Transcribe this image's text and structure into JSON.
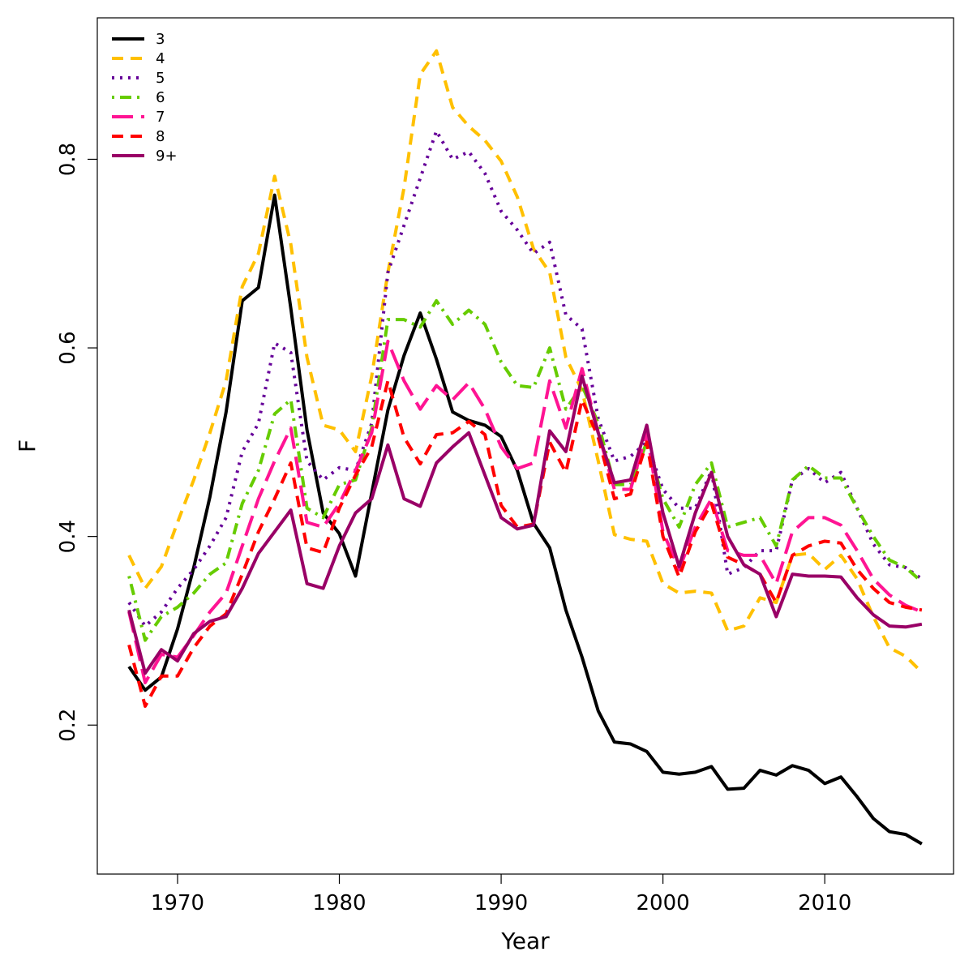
{
  "chart_data": {
    "type": "line",
    "x_label": "Year",
    "y_label": "F",
    "x": [
      1967,
      1968,
      1969,
      1970,
      1971,
      1972,
      1973,
      1974,
      1975,
      1976,
      1977,
      1978,
      1979,
      1980,
      1981,
      1982,
      1983,
      1984,
      1985,
      1986,
      1987,
      1988,
      1989,
      1990,
      1991,
      1992,
      1993,
      1994,
      1995,
      1996,
      1997,
      1998,
      1999,
      2000,
      2001,
      2002,
      2003,
      2004,
      2005,
      2006,
      2007,
      2008,
      2009,
      2010,
      2011,
      2012,
      2013,
      2014,
      2015,
      2016
    ],
    "xlim": [
      1965.04,
      2017.96
    ],
    "xticks": [
      1970,
      1980,
      1990,
      2000,
      2010
    ],
    "ylim": [
      0.042,
      0.95
    ],
    "yticks": [
      0.2,
      0.4,
      0.6,
      0.8
    ],
    "legend": "top-left",
    "series": [
      {
        "name": "3",
        "color": "#000000",
        "dash": "solid",
        "values": [
          0.262,
          0.237,
          0.251,
          0.302,
          0.367,
          0.442,
          0.532,
          0.65,
          0.664,
          0.762,
          0.642,
          0.513,
          0.425,
          0.403,
          0.358,
          0.446,
          0.534,
          0.592,
          0.637,
          0.588,
          0.532,
          0.523,
          0.518,
          0.506,
          0.47,
          0.414,
          0.388,
          0.322,
          0.272,
          0.215,
          0.182,
          0.18,
          0.172,
          0.15,
          0.148,
          0.15,
          0.156,
          0.132,
          0.133,
          0.152,
          0.147,
          0.157,
          0.152,
          0.138,
          0.145,
          0.124,
          0.101,
          0.087,
          0.084,
          0.074
        ]
      },
      {
        "name": "4",
        "color": "#ffc000",
        "dash": "dashed",
        "values": [
          0.38,
          0.345,
          0.368,
          0.415,
          0.46,
          0.51,
          0.565,
          0.665,
          0.7,
          0.782,
          0.71,
          0.59,
          0.518,
          0.513,
          0.49,
          0.57,
          0.68,
          0.77,
          0.89,
          0.915,
          0.855,
          0.835,
          0.82,
          0.798,
          0.76,
          0.705,
          0.68,
          0.59,
          0.555,
          0.48,
          0.402,
          0.397,
          0.395,
          0.35,
          0.34,
          0.342,
          0.34,
          0.3,
          0.305,
          0.335,
          0.33,
          0.38,
          0.382,
          0.365,
          0.38,
          0.355,
          0.315,
          0.282,
          0.273,
          0.256
        ]
      },
      {
        "name": "5",
        "color": "#660099",
        "dash": "dotted",
        "values": [
          0.33,
          0.305,
          0.32,
          0.345,
          0.365,
          0.39,
          0.42,
          0.49,
          0.52,
          0.605,
          0.595,
          0.48,
          0.46,
          0.473,
          0.47,
          0.52,
          0.68,
          0.73,
          0.78,
          0.83,
          0.8,
          0.808,
          0.785,
          0.745,
          0.725,
          0.7,
          0.712,
          0.635,
          0.62,
          0.525,
          0.48,
          0.485,
          0.5,
          0.45,
          0.43,
          0.43,
          0.47,
          0.36,
          0.367,
          0.385,
          0.385,
          0.46,
          0.472,
          0.457,
          0.468,
          0.43,
          0.392,
          0.37,
          0.367,
          0.355
        ]
      },
      {
        "name": "6",
        "color": "#66cc00",
        "dash": "dotdash",
        "values": [
          0.358,
          0.29,
          0.315,
          0.325,
          0.34,
          0.36,
          0.372,
          0.435,
          0.47,
          0.53,
          0.545,
          0.43,
          0.42,
          0.455,
          0.46,
          0.515,
          0.63,
          0.63,
          0.622,
          0.65,
          0.625,
          0.64,
          0.625,
          0.585,
          0.56,
          0.558,
          0.6,
          0.535,
          0.56,
          0.52,
          0.455,
          0.455,
          0.5,
          0.44,
          0.41,
          0.455,
          0.478,
          0.41,
          0.415,
          0.42,
          0.39,
          0.46,
          0.475,
          0.462,
          0.462,
          0.43,
          0.4,
          0.375,
          0.367,
          0.352
        ]
      },
      {
        "name": "7",
        "color": "#ff1493",
        "dash": "longdash",
        "values": [
          0.32,
          0.245,
          0.275,
          0.272,
          0.295,
          0.32,
          0.34,
          0.39,
          0.44,
          0.48,
          0.515,
          0.415,
          0.41,
          0.435,
          0.47,
          0.51,
          0.607,
          0.565,
          0.535,
          0.56,
          0.545,
          0.563,
          0.535,
          0.495,
          0.472,
          0.478,
          0.565,
          0.515,
          0.578,
          0.51,
          0.45,
          0.45,
          0.51,
          0.405,
          0.365,
          0.41,
          0.44,
          0.385,
          0.38,
          0.38,
          0.35,
          0.405,
          0.42,
          0.42,
          0.412,
          0.385,
          0.355,
          0.338,
          0.327,
          0.32
        ]
      },
      {
        "name": "8",
        "color": "#ff0000",
        "dash": "dashed",
        "values": [
          0.285,
          0.22,
          0.252,
          0.252,
          0.282,
          0.305,
          0.318,
          0.36,
          0.405,
          0.44,
          0.478,
          0.388,
          0.383,
          0.43,
          0.465,
          0.495,
          0.565,
          0.505,
          0.477,
          0.508,
          0.51,
          0.522,
          0.508,
          0.433,
          0.41,
          0.413,
          0.5,
          0.468,
          0.545,
          0.505,
          0.44,
          0.445,
          0.5,
          0.4,
          0.357,
          0.405,
          0.435,
          0.378,
          0.37,
          0.36,
          0.33,
          0.38,
          0.39,
          0.395,
          0.393,
          0.365,
          0.345,
          0.33,
          0.325,
          0.322
        ]
      },
      {
        "name": "9+",
        "color": "#990066",
        "dash": "solid",
        "values": [
          0.322,
          0.255,
          0.28,
          0.268,
          0.297,
          0.31,
          0.315,
          0.345,
          0.382,
          0.405,
          0.428,
          0.35,
          0.345,
          0.39,
          0.425,
          0.44,
          0.497,
          0.44,
          0.432,
          0.478,
          0.495,
          0.51,
          0.465,
          0.42,
          0.408,
          0.412,
          0.512,
          0.49,
          0.57,
          0.51,
          0.457,
          0.46,
          0.518,
          0.425,
          0.368,
          0.425,
          0.468,
          0.4,
          0.37,
          0.36,
          0.315,
          0.36,
          0.358,
          0.358,
          0.357,
          0.335,
          0.317,
          0.305,
          0.304,
          0.307
        ]
      }
    ]
  }
}
